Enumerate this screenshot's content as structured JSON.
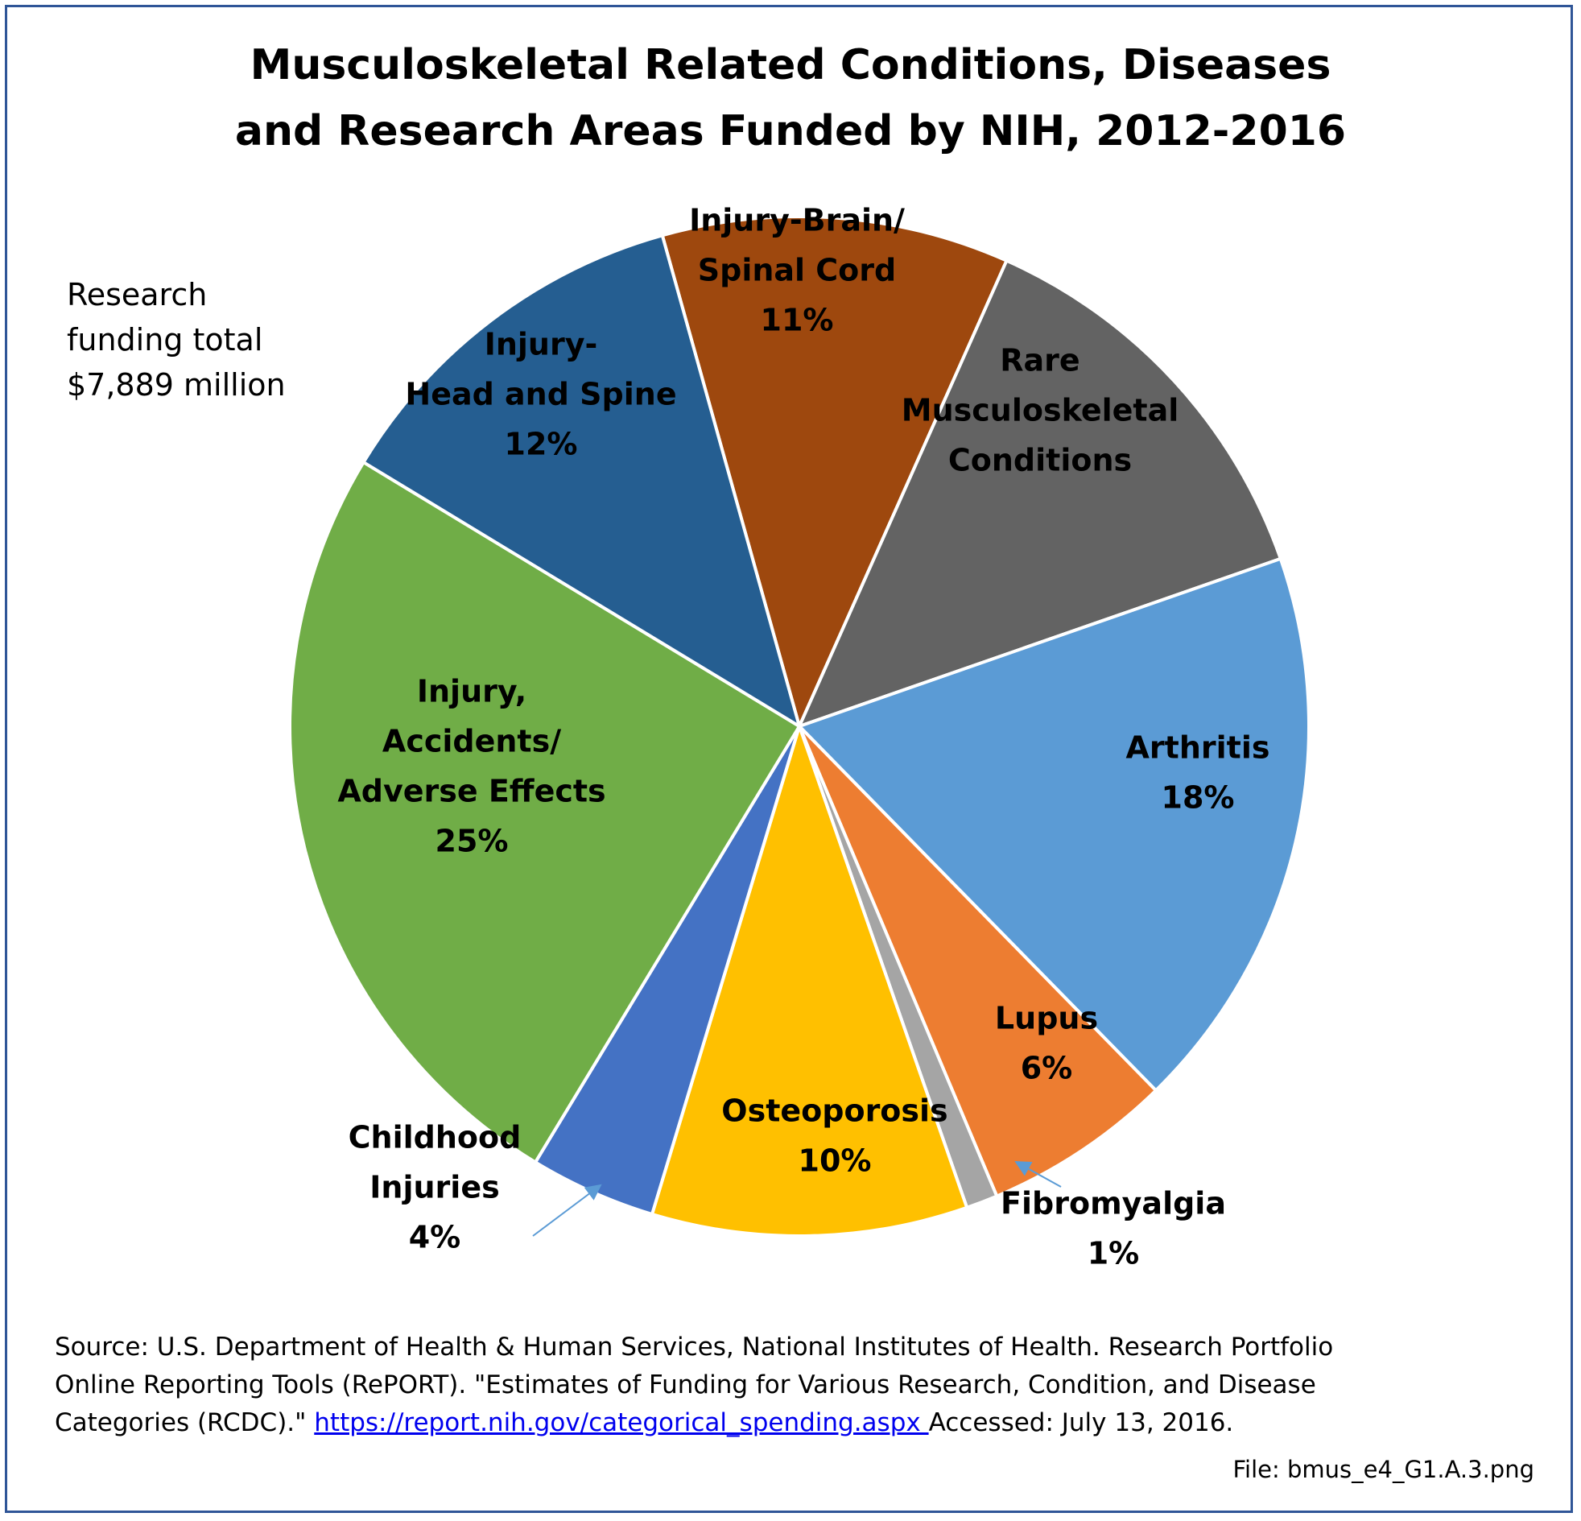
{
  "chart_data": {
    "type": "pie",
    "title_lines": [
      "Musculoskeletal Related Conditions, Diseases",
      "and Research Areas Funded by NIH, 2012-2016"
    ],
    "slices": [
      {
        "name": "Injury-Brain/ Spinal Cord",
        "label_lines": [
          "Injury-Brain/",
          "Spinal Cord"
        ],
        "pct_label": "11%",
        "value": 11,
        "color": "#9e480e"
      },
      {
        "name": "Rare Musculoskeletal Conditions",
        "label_lines": [
          "Rare",
          "Musculoskeletal",
          "Conditions"
        ],
        "pct_label": "",
        "value": 13,
        "color": "#636363"
      },
      {
        "name": "Arthritis",
        "label_lines": [
          "Arthritis"
        ],
        "pct_label": "18%",
        "value": 18,
        "color": "#5b9bd5"
      },
      {
        "name": "Lupus",
        "label_lines": [
          "Lupus"
        ],
        "pct_label": "6%",
        "value": 6,
        "color": "#ed7d31"
      },
      {
        "name": "Fibromyalgia",
        "label_lines": [
          "Fibromyalgia"
        ],
        "pct_label": "1%",
        "value": 1,
        "color": "#a5a5a5"
      },
      {
        "name": "Osteoporosis",
        "label_lines": [
          "Osteoporosis"
        ],
        "pct_label": "10%",
        "value": 10,
        "color": "#ffc000"
      },
      {
        "name": "Childhood Injuries",
        "label_lines": [
          "Childhood",
          "Injuries"
        ],
        "pct_label": "4%",
        "value": 4,
        "color": "#4472c4"
      },
      {
        "name": "Injury, Accidents/ Adverse Effects",
        "label_lines": [
          "Injury,",
          "Accidents/",
          "Adverse Effects"
        ],
        "pct_label": "25%",
        "value": 25,
        "color": "#70ad47"
      },
      {
        "name": "Injury- Head and Spine",
        "label_lines": [
          "Injury-",
          "Head and Spine"
        ],
        "pct_label": "12%",
        "value": 12,
        "color": "#255e91"
      }
    ],
    "annotation_lines": [
      "Research",
      "funding total",
      "$7,889 million"
    ]
  },
  "source": {
    "text": "Source: U.S. Department of Health & Human Services, National Institutes of Health. Research Portfolio Online Reporting Tools (RePORT). \"Estimates of Funding for Various Research, Condition, and Disease Categories (RCDC).\" ",
    "link": "https://report.nih.gov/categorical_spending.aspx ",
    "suffix": "Accessed: July 13, 2016."
  },
  "file_label": "File: bmus_e4_G1.A.3.png"
}
